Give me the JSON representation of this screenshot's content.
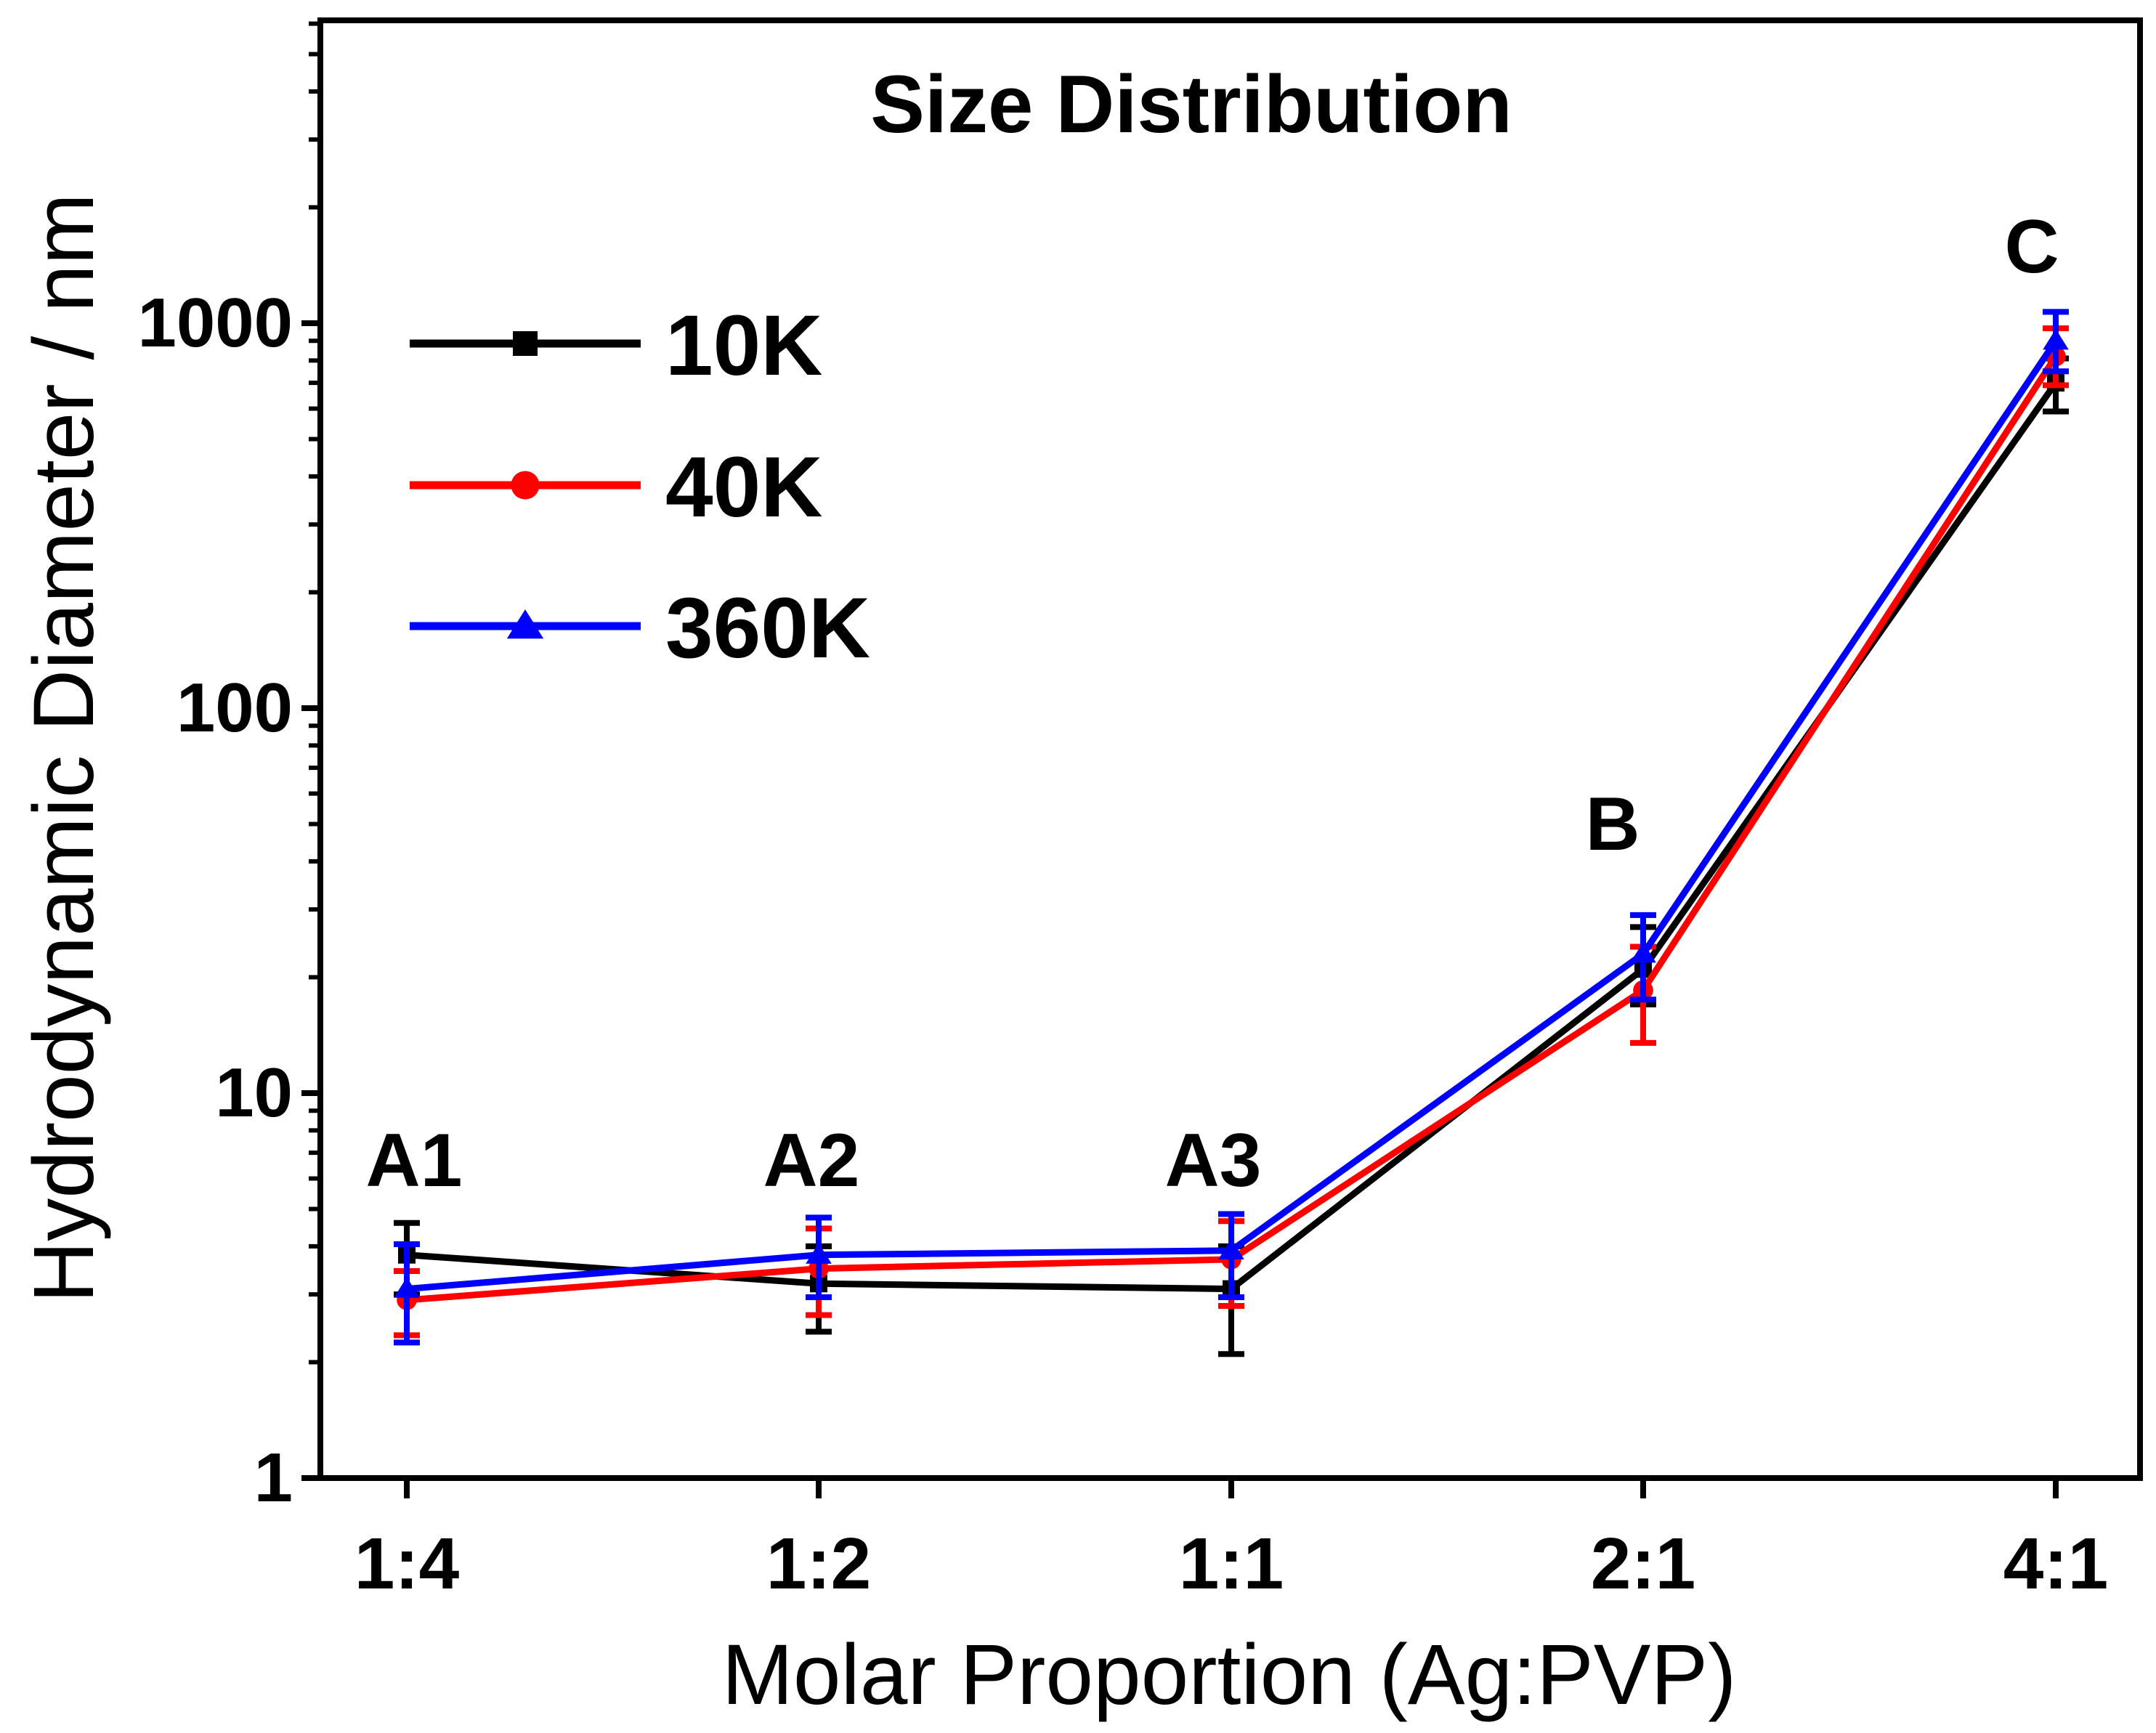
{
  "chart_data": {
    "type": "line",
    "title": "Size Distribution",
    "xlabel": "Molar Proportion (Ag:PVP)",
    "ylabel": "Hydrodynamic Diameter / nm",
    "yscale": "log",
    "ylim": [
      1,
      6500
    ],
    "yticks": [
      1,
      10,
      100,
      1000
    ],
    "yticklabels": [
      "1",
      "10",
      "100",
      "1000"
    ],
    "categories": [
      "1:4",
      "1:2",
      "1:1",
      "2:1",
      "4:1"
    ],
    "point_labels": [
      "A1",
      "A2",
      "A3",
      "B",
      "C"
    ],
    "legend_position": "top-left",
    "series": [
      {
        "name": "10K",
        "color": "#000000",
        "marker": "square",
        "values": [
          3.8,
          3.2,
          3.1,
          21,
          700
        ],
        "err_low": [
          3.0,
          2.4,
          2.1,
          17,
          590
        ],
        "err_high": [
          4.6,
          4.0,
          4.0,
          27,
          810
        ]
      },
      {
        "name": "40K",
        "color": "#ff0000",
        "marker": "circle",
        "values": [
          2.9,
          3.5,
          3.7,
          18.5,
          820
        ],
        "err_low": [
          2.35,
          2.65,
          2.8,
          13.5,
          690
        ],
        "err_high": [
          3.45,
          4.45,
          4.65,
          24,
          970
        ]
      },
      {
        "name": "360K",
        "color": "#0000ff",
        "marker": "triangle",
        "values": [
          3.1,
          3.8,
          3.9,
          23,
          900
        ],
        "err_low": [
          2.25,
          2.95,
          2.95,
          17.5,
          750
        ],
        "err_high": [
          4.05,
          4.75,
          4.85,
          29,
          1070
        ]
      }
    ]
  }
}
